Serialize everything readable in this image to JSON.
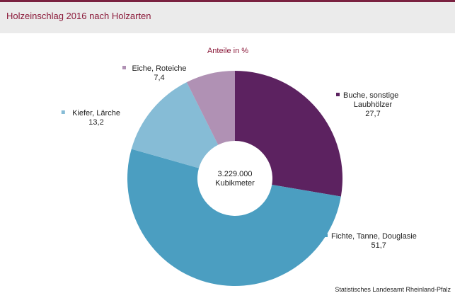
{
  "header": {
    "title": "Holzeinschlag 2016 nach Holzarten"
  },
  "chart_data": {
    "type": "pie",
    "subtitle": "Anteile in %",
    "center_label": {
      "value": "3.229.000",
      "unit": "Kubikmeter"
    },
    "slices": [
      {
        "name_lines": [
          "Buche, sonstige",
          "Laubhölzer"
        ],
        "value": 27.7,
        "value_label": "27,7",
        "color": "#5c2260"
      },
      {
        "name_lines": [
          "Fichte, Tanne, Douglasie"
        ],
        "value": 51.7,
        "value_label": "51,7",
        "color": "#4b9ec1"
      },
      {
        "name_lines": [
          "Kiefer, Lärche"
        ],
        "value": 13.2,
        "value_label": "13,2",
        "color": "#86bcd6"
      },
      {
        "name_lines": [
          "Eiche, Roteiche"
        ],
        "value": 7.4,
        "value_label": "7,4",
        "color": "#b091b4"
      }
    ],
    "legend": "labels next to slices"
  },
  "footer": {
    "source": "Statistisches Landesamt Rheinland-Pfalz"
  }
}
